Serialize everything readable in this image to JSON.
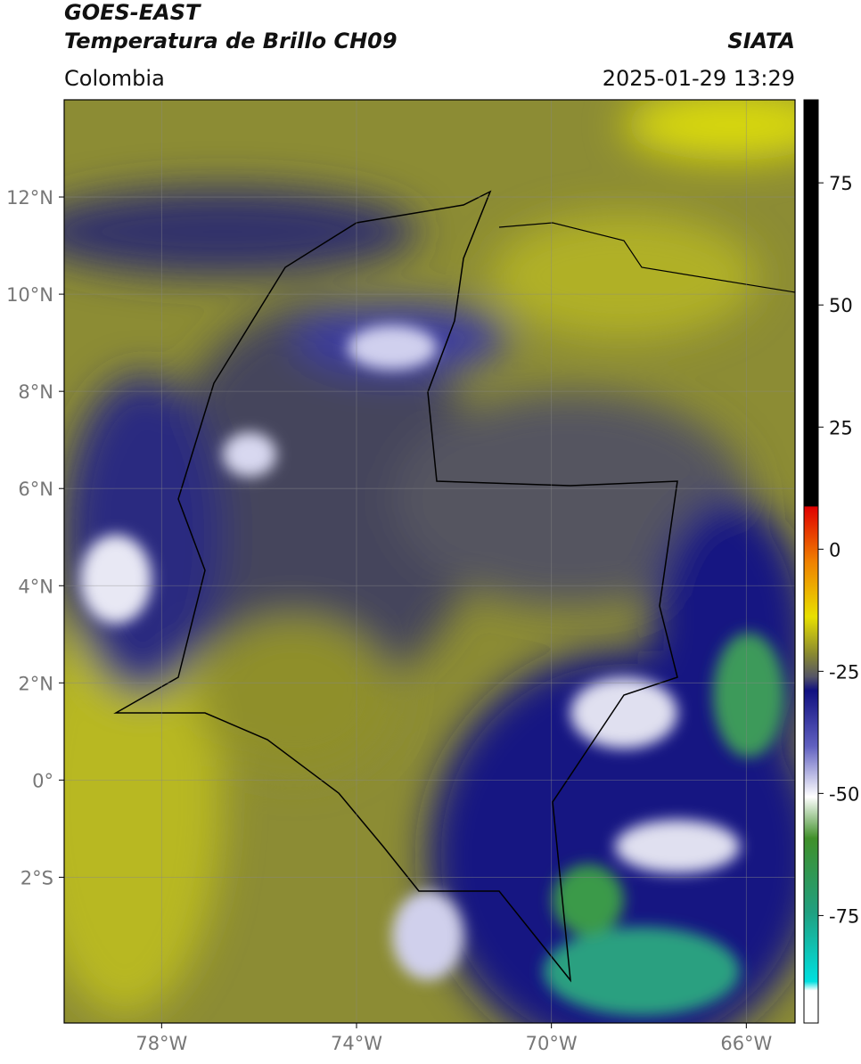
{
  "header": {
    "title": "GOES-EAST",
    "subtitle": "Temperatura de Brillo CH09",
    "source": "SIATA",
    "region": "Colombia",
    "datetime": "2025-01-29 13:29"
  },
  "map": {
    "xlim": [
      -80,
      -65
    ],
    "ylim": [
      -5,
      14
    ],
    "xticks": [
      {
        "value": -78,
        "label": "78°W"
      },
      {
        "value": -74,
        "label": "74°W"
      },
      {
        "value": -70,
        "label": "70°W"
      },
      {
        "value": -66,
        "label": "66°W"
      }
    ],
    "yticks": [
      {
        "value": 12,
        "label": "12°N"
      },
      {
        "value": 10,
        "label": "10°N"
      },
      {
        "value": 8,
        "label": "8°N"
      },
      {
        "value": 6,
        "label": "6°N"
      },
      {
        "value": 4,
        "label": "4°N"
      },
      {
        "value": 2,
        "label": "2°N"
      },
      {
        "value": 0,
        "label": "0°"
      },
      {
        "value": -2,
        "label": "2°S"
      }
    ],
    "grid": true
  },
  "colorbar": {
    "lim": [
      -97,
      92
    ],
    "ticks": [
      75,
      50,
      25,
      0,
      -25,
      -50,
      -75
    ]
  }
}
